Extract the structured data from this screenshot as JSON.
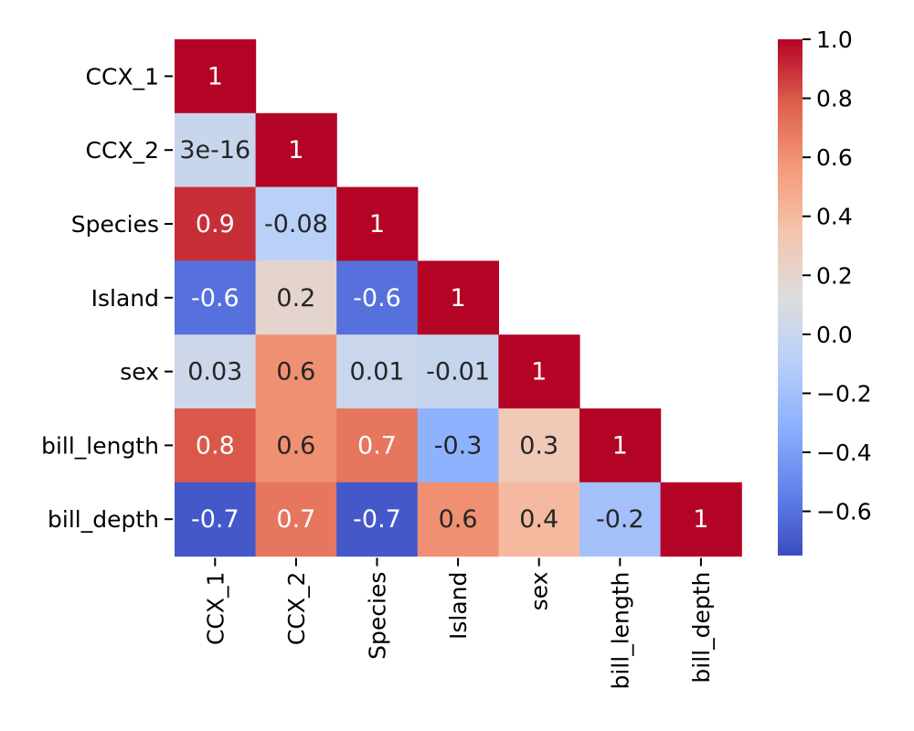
{
  "chart_data": {
    "type": "heatmap",
    "title": "",
    "xlabel": "",
    "ylabel": "",
    "rows": [
      "CCX_1",
      "CCX_2",
      "Species",
      "Island",
      "sex",
      "bill_length",
      "bill_depth"
    ],
    "columns": [
      "CCX_1",
      "CCX_2",
      "Species",
      "Island",
      "sex",
      "bill_length",
      "bill_depth"
    ],
    "mask": "upper triangle (above diagonal) hidden",
    "cells": [
      [
        {
          "value": 1,
          "label": "1"
        }
      ],
      [
        {
          "value": 0.0,
          "label": "3e-16"
        },
        {
          "value": 1,
          "label": "1"
        }
      ],
      [
        {
          "value": 0.9,
          "label": "0.9"
        },
        {
          "value": -0.08,
          "label": "-0.08"
        },
        {
          "value": 1,
          "label": "1"
        }
      ],
      [
        {
          "value": -0.6,
          "label": "-0.6"
        },
        {
          "value": 0.2,
          "label": "0.2"
        },
        {
          "value": -0.6,
          "label": "-0.6"
        },
        {
          "value": 1,
          "label": "1"
        }
      ],
      [
        {
          "value": 0.03,
          "label": "0.03"
        },
        {
          "value": 0.6,
          "label": "0.6"
        },
        {
          "value": 0.01,
          "label": "0.01"
        },
        {
          "value": -0.01,
          "label": "-0.01"
        },
        {
          "value": 1,
          "label": "1"
        }
      ],
      [
        {
          "value": 0.8,
          "label": "0.8"
        },
        {
          "value": 0.6,
          "label": "0.6"
        },
        {
          "value": 0.7,
          "label": "0.7"
        },
        {
          "value": -0.3,
          "label": "-0.3"
        },
        {
          "value": 0.3,
          "label": "0.3"
        },
        {
          "value": 1,
          "label": "1"
        }
      ],
      [
        {
          "value": -0.7,
          "label": "-0.7"
        },
        {
          "value": 0.7,
          "label": "0.7"
        },
        {
          "value": -0.7,
          "label": "-0.7"
        },
        {
          "value": 0.6,
          "label": "0.6"
        },
        {
          "value": 0.4,
          "label": "0.4"
        },
        {
          "value": -0.2,
          "label": "-0.2"
        },
        {
          "value": 1,
          "label": "1"
        }
      ]
    ],
    "colormap": "coolwarm",
    "colorbar": {
      "range": [
        -0.75,
        1.0
      ],
      "ticks": [
        1.0,
        0.8,
        0.6,
        0.4,
        0.2,
        0.0,
        -0.2,
        -0.4,
        -0.6
      ],
      "tick_labels": [
        "1.0",
        "0.8",
        "0.6",
        "0.4",
        "0.2",
        "0.0",
        "−0.2",
        "−0.4",
        "−0.6"
      ]
    },
    "grid": false,
    "legend": "colorbar at right"
  }
}
